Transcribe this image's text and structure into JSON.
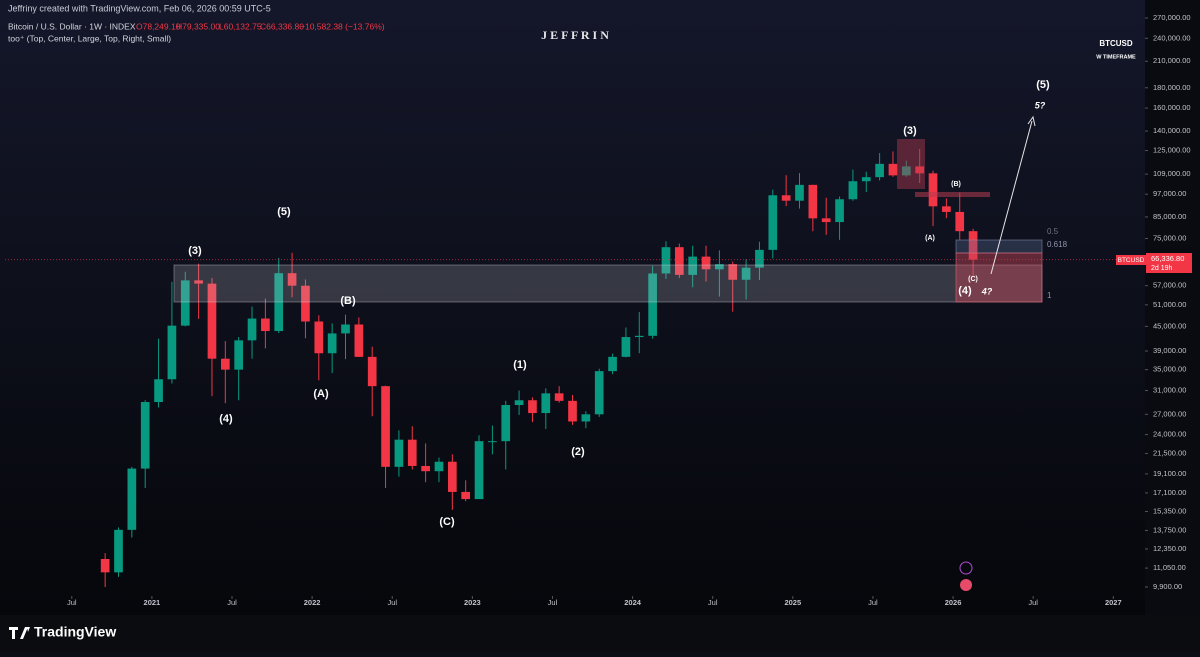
{
  "header": {
    "credit": "Jeffriny created with TradingView.com, Feb 06, 2026 00:59 UTC-5",
    "symbol": "Bitcoin / U.S. Dollar · 1W · INDEX",
    "open": "O78,249.10",
    "high": "H79,335.00",
    "low": "L60,132.75",
    "close": "C66,336.80",
    "change": "−10,582.38 (−13.76%)",
    "indicator": "too⁺ (Top, Center, Large, Top, Right, Small)"
  },
  "watermark": "J E F F R I N",
  "corner": {
    "symbol": "BTCUSD",
    "timeframe": "W TIMEFRAME"
  },
  "price_label": {
    "symbol": "BTCUSD",
    "price": "66,336.80",
    "countdown": "2d 19h"
  },
  "fib_levels": [
    0.5,
    0.618,
    1
  ],
  "annotations": [
    "(3)",
    "(5)",
    "(4)",
    "(B)",
    "(A)",
    "(C)",
    "(1)",
    "(2)",
    "(3)",
    "(A)",
    "(B)",
    "(C)",
    "(4)",
    "4?",
    "(5)",
    "5?"
  ],
  "footer": "TradingView",
  "chart_data": {
    "type": "candlestick",
    "log_scale": true,
    "up_color": "#089981",
    "down_color": "#f23645",
    "x": [
      "2020-09",
      "2020-10",
      "2020-11",
      "2020-12",
      "2021-01",
      "2021-02",
      "2021-03",
      "2021-04",
      "2021-05",
      "2021-06",
      "2021-07",
      "2021-08",
      "2021-09",
      "2021-10",
      "2021-11",
      "2021-12",
      "2022-01",
      "2022-02",
      "2022-03",
      "2022-04",
      "2022-05",
      "2022-06",
      "2022-07",
      "2022-08",
      "2022-09",
      "2022-10",
      "2022-11",
      "2022-12",
      "2023-01",
      "2023-02",
      "2023-03",
      "2023-04",
      "2023-05",
      "2023-06",
      "2023-07",
      "2023-08",
      "2023-09",
      "2023-10",
      "2023-11",
      "2023-12",
      "2024-01",
      "2024-02",
      "2024-03",
      "2024-04",
      "2024-05",
      "2024-06",
      "2024-07",
      "2024-08",
      "2024-09",
      "2024-10",
      "2024-11",
      "2024-12",
      "2025-01",
      "2025-02",
      "2025-03",
      "2025-04",
      "2025-05",
      "2025-06",
      "2025-07",
      "2025-08",
      "2025-09",
      "2025-10",
      "2025-11",
      "2025-12",
      "2026-01",
      "2026-02"
    ],
    "open": [
      11650,
      10780,
      13800,
      19700,
      29000,
      33100,
      45200,
      58800,
      57700,
      37300,
      35000,
      41500,
      47100,
      43800,
      61300,
      57000,
      46300,
      38500,
      43200,
      45500,
      37700,
      31800,
      19900,
      23300,
      20000,
      19400,
      20500,
      17200,
      16500,
      23100,
      23100,
      28500,
      29300,
      27200,
      30500,
      29200,
      25900,
      27000,
      34700,
      37700,
      42300,
      42600,
      61200,
      71300,
      60700,
      67500,
      62700,
      64600,
      59000,
      63300,
      70200,
      96400,
      93400,
      102400,
      84300,
      82500,
      94200,
      104600,
      107100,
      115700,
      108200,
      114000,
      109500,
      90400,
      87500,
      78249
    ],
    "high": [
      12050,
      14000,
      19900,
      29300,
      41900,
      58300,
      61800,
      64800,
      59600,
      41300,
      42300,
      50500,
      52900,
      67000,
      69000,
      59100,
      48000,
      45800,
      48200,
      47400,
      40000,
      31900,
      24600,
      25200,
      22800,
      21000,
      21400,
      18400,
      23900,
      25300,
      29200,
      31000,
      29800,
      31400,
      31800,
      30200,
      27500,
      35200,
      38400,
      44700,
      48900,
      64000,
      73800,
      72800,
      71900,
      71900,
      70000,
      65600,
      66500,
      73600,
      99600,
      108300,
      109600,
      102500,
      95000,
      95700,
      111900,
      110500,
      123200,
      124400,
      117900,
      126200,
      111200,
      94600,
      97900,
      79335
    ],
    "low": [
      9900,
      10500,
      13200,
      17600,
      28100,
      32300,
      45000,
      47000,
      30000,
      28800,
      29300,
      37300,
      39600,
      43300,
      53300,
      42000,
      32900,
      34300,
      37200,
      37700,
      26700,
      17600,
      18800,
      19600,
      18200,
      18200,
      15500,
      16300,
      16500,
      21400,
      19600,
      26900,
      25800,
      24800,
      28900,
      25400,
      24900,
      26600,
      34100,
      37600,
      38500,
      41900,
      59300,
      59600,
      56500,
      58400,
      53500,
      49000,
      52600,
      58900,
      66800,
      90500,
      89200,
      78200,
      76600,
      74400,
      93400,
      98200,
      105100,
      107300,
      107300,
      103500,
      80600,
      84400,
      74500,
      60132
    ],
    "close": [
      10780,
      13800,
      19700,
      29000,
      33100,
      45200,
      58800,
      57700,
      37300,
      35000,
      41500,
      47100,
      43800,
      61300,
      57000,
      46300,
      38500,
      43200,
      45500,
      37700,
      31800,
      19900,
      23300,
      20000,
      19400,
      20500,
      17200,
      16500,
      23100,
      23100,
      28500,
      29300,
      27200,
      30500,
      29200,
      25900,
      27000,
      34700,
      37700,
      42300,
      42600,
      61200,
      71300,
      60700,
      67500,
      62700,
      64600,
      59000,
      63300,
      70200,
      96400,
      93400,
      102400,
      84300,
      82500,
      94200,
      104600,
      107100,
      115700,
      108200,
      114000,
      109500,
      90400,
      87500,
      78249,
      66336.8
    ],
    "xlim": [
      "2020-02",
      "2027-03"
    ],
    "xticks": [
      {
        "value": "2020-07",
        "label": "Jul"
      },
      {
        "value": "2021-01",
        "label": "2021"
      },
      {
        "value": "2021-07",
        "label": "Jul"
      },
      {
        "value": "2022-01",
        "label": "2022"
      },
      {
        "value": "2022-07",
        "label": "Jul"
      },
      {
        "value": "2023-01",
        "label": "2023"
      },
      {
        "value": "2023-07",
        "label": "Jul"
      },
      {
        "value": "2024-01",
        "label": "2024"
      },
      {
        "value": "2024-07",
        "label": "Jul"
      },
      {
        "value": "2025-01",
        "label": "2025"
      },
      {
        "value": "2025-07",
        "label": "Jul"
      },
      {
        "value": "2026-01",
        "label": "2026"
      },
      {
        "value": "2026-07",
        "label": "Jul"
      },
      {
        "value": "2027-01",
        "label": "2027"
      }
    ],
    "ylim": [
      9561,
      286150
    ],
    "yticks": [
      {
        "value": 270000,
        "label": "270,000.00"
      },
      {
        "value": 240000,
        "label": "240,000.00"
      },
      {
        "value": 210000,
        "label": "210,000.00"
      },
      {
        "value": 180000,
        "label": "180,000.00"
      },
      {
        "value": 160000,
        "label": "160,000.00"
      },
      {
        "value": 140000,
        "label": "140,000.00"
      },
      {
        "value": 125000,
        "label": "125,000.00"
      },
      {
        "value": 109000,
        "label": "109,000.00"
      },
      {
        "value": 97000,
        "label": "97,000.00"
      },
      {
        "value": 85000,
        "label": "85,000.00"
      },
      {
        "value": 75000,
        "label": "75,000.00"
      },
      {
        "value": 57000,
        "label": "57,000.00"
      },
      {
        "value": 51000,
        "label": "51,000.00"
      },
      {
        "value": 45000,
        "label": "45,000.00"
      },
      {
        "value": 39000,
        "label": "39,000.00"
      },
      {
        "value": 35000,
        "label": "35,000.00"
      },
      {
        "value": 31000,
        "label": "31,000.00"
      },
      {
        "value": 27000,
        "label": "27,000.00"
      },
      {
        "value": 24000,
        "label": "24,000.00"
      },
      {
        "value": 21500,
        "label": "21,500.00"
      },
      {
        "value": 19100,
        "label": "19,100.00"
      },
      {
        "value": 17100,
        "label": "17,100.00"
      },
      {
        "value": 15350,
        "label": "15,350.00"
      },
      {
        "value": 13750,
        "label": "13,750.00"
      },
      {
        "value": 12350,
        "label": "12,350.00"
      },
      {
        "value": 11050,
        "label": "11,050.00"
      },
      {
        "value": 9900,
        "label": "9,900.00"
      }
    ]
  }
}
